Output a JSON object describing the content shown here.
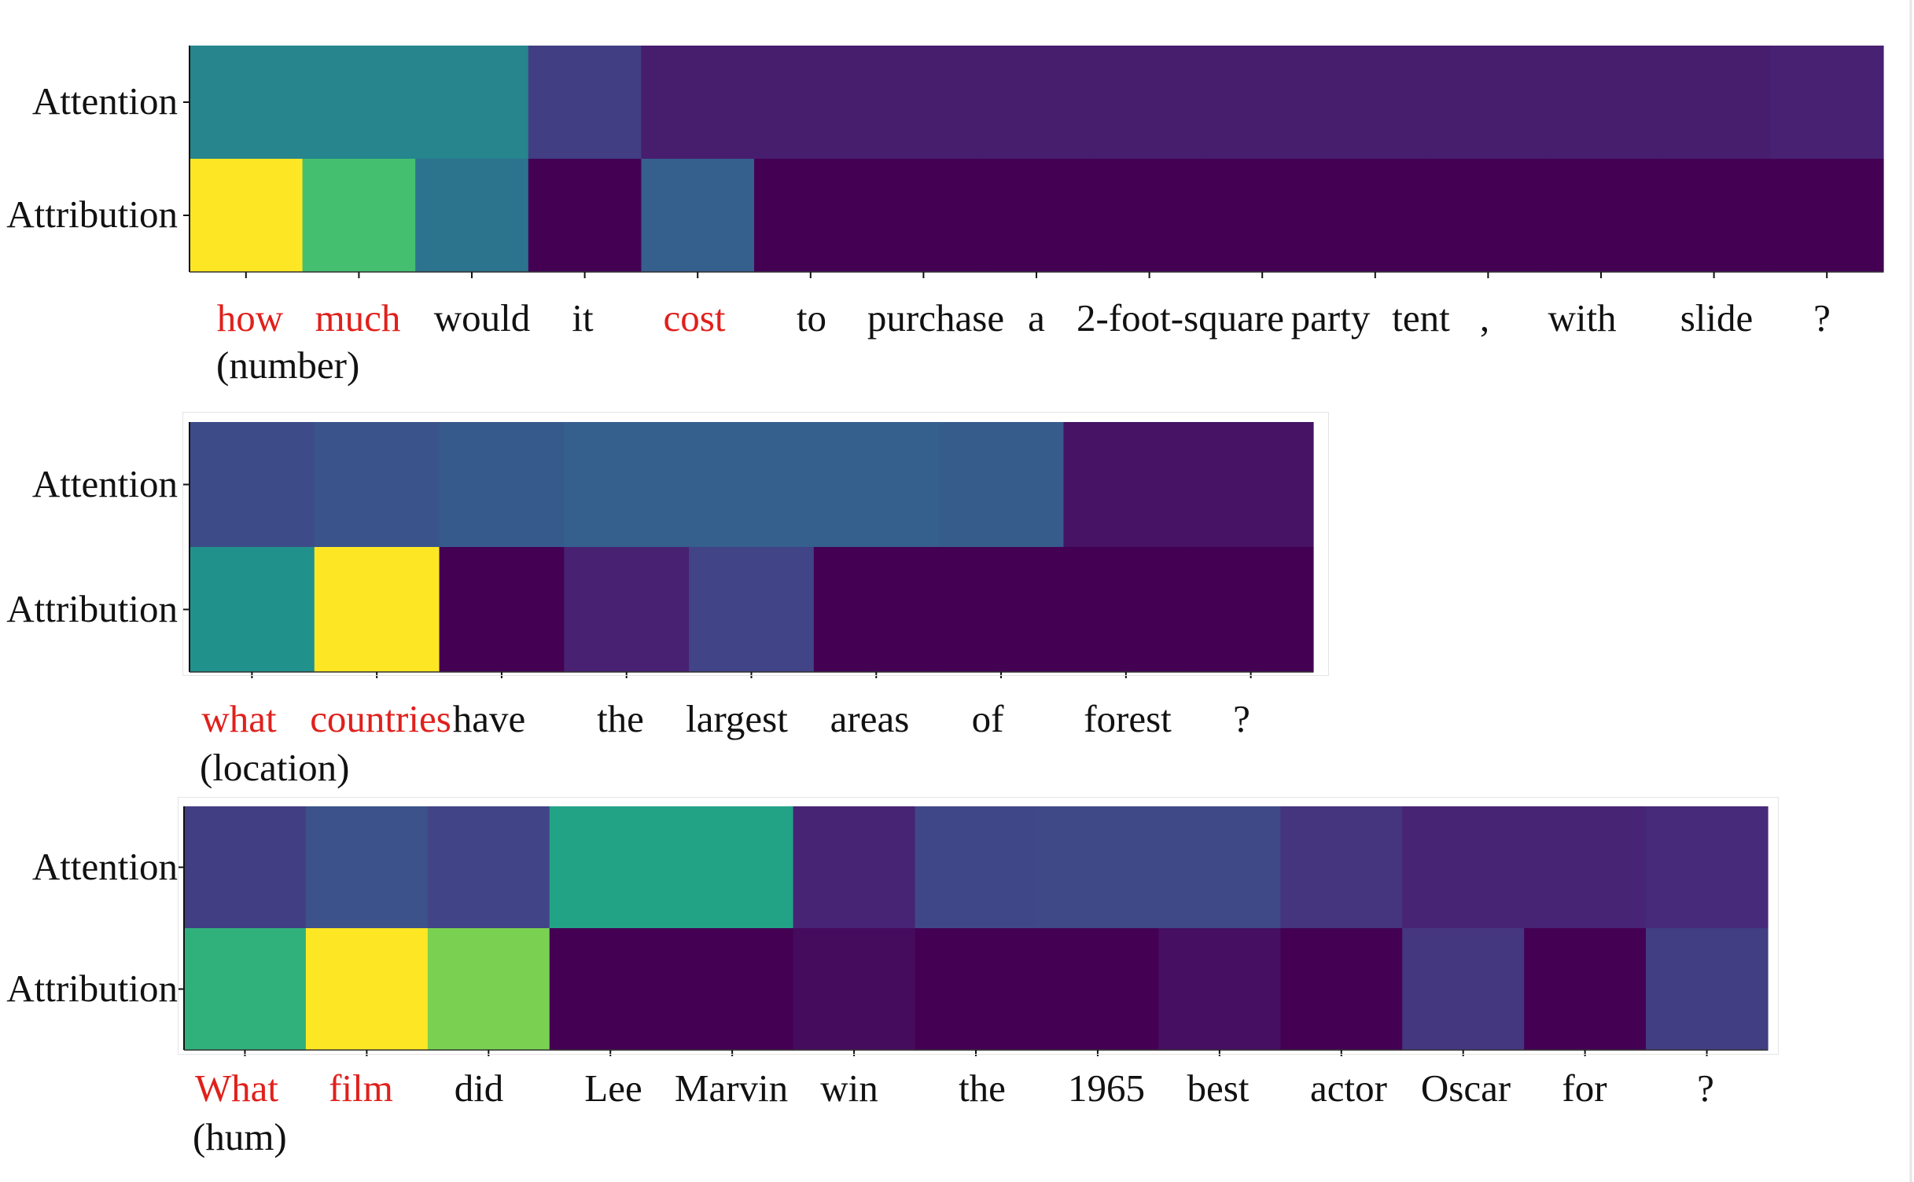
{
  "chart_data": [
    {
      "type": "heatmap",
      "rows": [
        "Attention",
        "Attribution"
      ],
      "tokens": [
        "how",
        "much",
        "would",
        "it",
        "cost",
        "to",
        "purchase",
        "a",
        "2-foot-square",
        "party",
        "tent",
        ",",
        "with",
        "slide",
        "?"
      ],
      "highlighted": [
        0,
        1,
        4
      ],
      "label": "(number)",
      "values": [
        [
          0.45,
          0.45,
          0.45,
          0.18,
          0.08,
          0.08,
          0.08,
          0.08,
          0.08,
          0.08,
          0.08,
          0.08,
          0.08,
          0.08,
          0.09
        ],
        [
          1.0,
          0.7,
          0.38,
          0.0,
          0.3,
          0.0,
          0.0,
          0.0,
          0.0,
          0.0,
          0.0,
          0.0,
          0.0,
          0.0,
          0.0
        ]
      ],
      "colormap": "viridis"
    },
    {
      "type": "heatmap",
      "rows": [
        "Attention",
        "Attribution"
      ],
      "tokens": [
        "what",
        "countries",
        "have",
        "the",
        "largest",
        "areas",
        "of",
        "forest",
        "?"
      ],
      "highlighted": [
        0,
        1
      ],
      "label": "(location)",
      "values": [
        [
          0.23,
          0.26,
          0.28,
          0.3,
          0.3,
          0.3,
          0.29,
          0.05,
          0.05
        ],
        [
          0.5,
          1.0,
          0.0,
          0.09,
          0.2,
          0.0,
          0.0,
          0.0,
          0.0
        ]
      ],
      "colormap": "viridis"
    },
    {
      "type": "heatmap",
      "rows": [
        "Attention",
        "Attribution"
      ],
      "tokens": [
        "What",
        "film",
        "did",
        "Lee",
        "Marvin",
        "win",
        "the",
        "1965",
        "best",
        "actor",
        "Oscar",
        "for",
        "?"
      ],
      "highlighted": [
        0,
        1
      ],
      "label": "(hum)",
      "values": [
        [
          0.18,
          0.25,
          0.2,
          0.58,
          0.58,
          0.1,
          0.21,
          0.22,
          0.22,
          0.15,
          0.1,
          0.1,
          0.12
        ],
        [
          0.64,
          1.0,
          0.8,
          0.0,
          0.0,
          0.03,
          0.0,
          0.0,
          0.04,
          0.0,
          0.16,
          0.0,
          0.18
        ]
      ],
      "colormap": "viridis"
    }
  ]
}
